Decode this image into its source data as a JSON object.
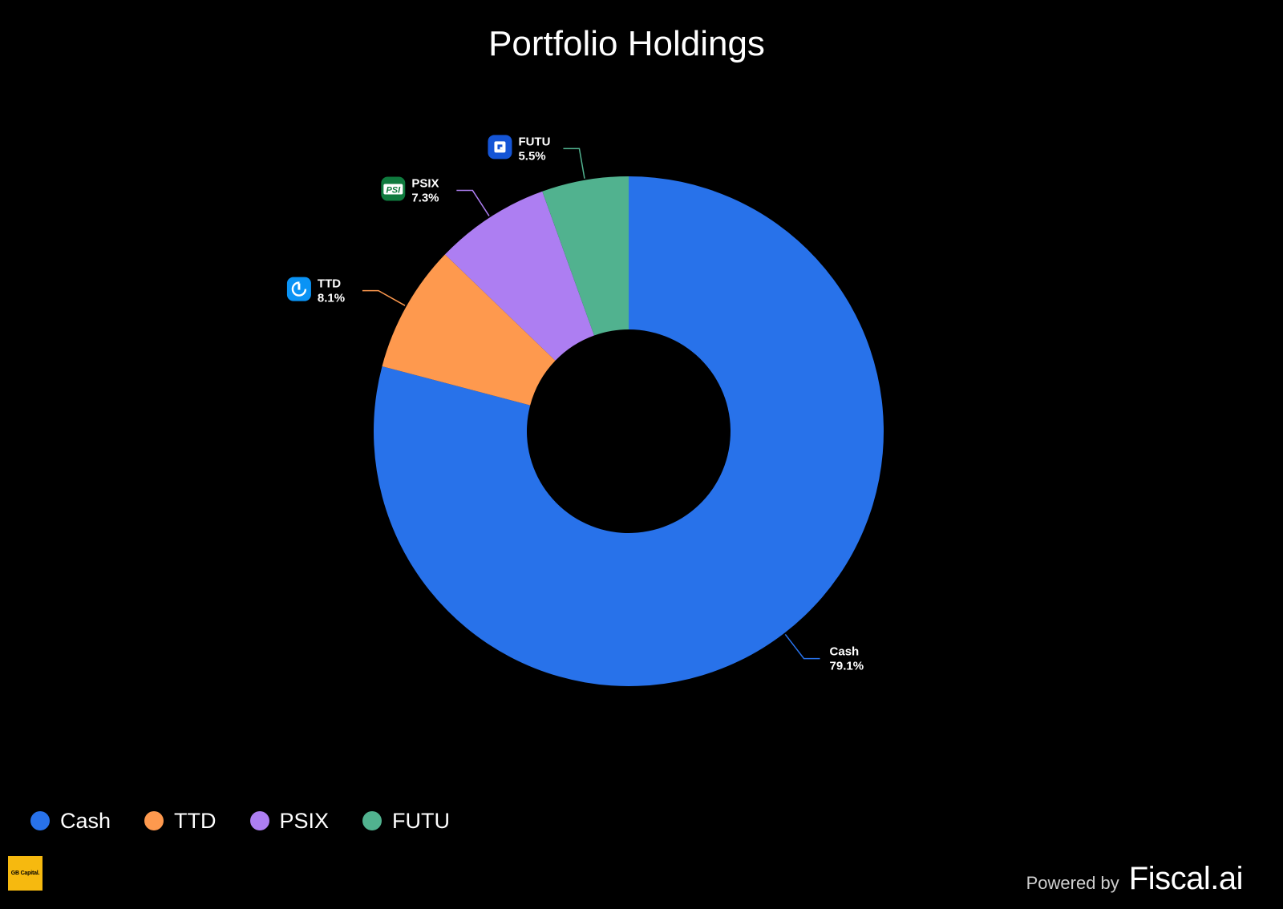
{
  "header": {
    "title": "Portfolio Holdings"
  },
  "chart_data": {
    "type": "pie",
    "title": "Portfolio Holdings",
    "donut": true,
    "series": [
      {
        "name": "Cash",
        "value": 79.1,
        "label": "79.1%",
        "color": "#2872ea"
      },
      {
        "name": "TTD",
        "value": 8.1,
        "label": "8.1%",
        "color": "#fe994e",
        "icon": "ttd-logo-icon",
        "icon_color": "#0a93f5"
      },
      {
        "name": "PSIX",
        "value": 7.3,
        "label": "7.3%",
        "color": "#ad7ef2",
        "icon": "psix-logo-icon",
        "icon_color": "#0f7a3e",
        "icon_text": "PSI"
      },
      {
        "name": "FUTU",
        "value": 5.5,
        "label": "5.5%",
        "color": "#51b28f",
        "icon": "futu-logo-icon",
        "icon_color": "#1555d6"
      }
    ],
    "legend_position": "bottom-left"
  },
  "legend": {
    "items": [
      {
        "label": "Cash",
        "color": "#2872ea"
      },
      {
        "label": "TTD",
        "color": "#fe994e"
      },
      {
        "label": "PSIX",
        "color": "#ad7ef2"
      },
      {
        "label": "FUTU",
        "color": "#51b28f"
      }
    ]
  },
  "footer": {
    "logo_text": "GB Capital.",
    "powered_by": "Powered by",
    "brand": "Fiscal.ai"
  }
}
